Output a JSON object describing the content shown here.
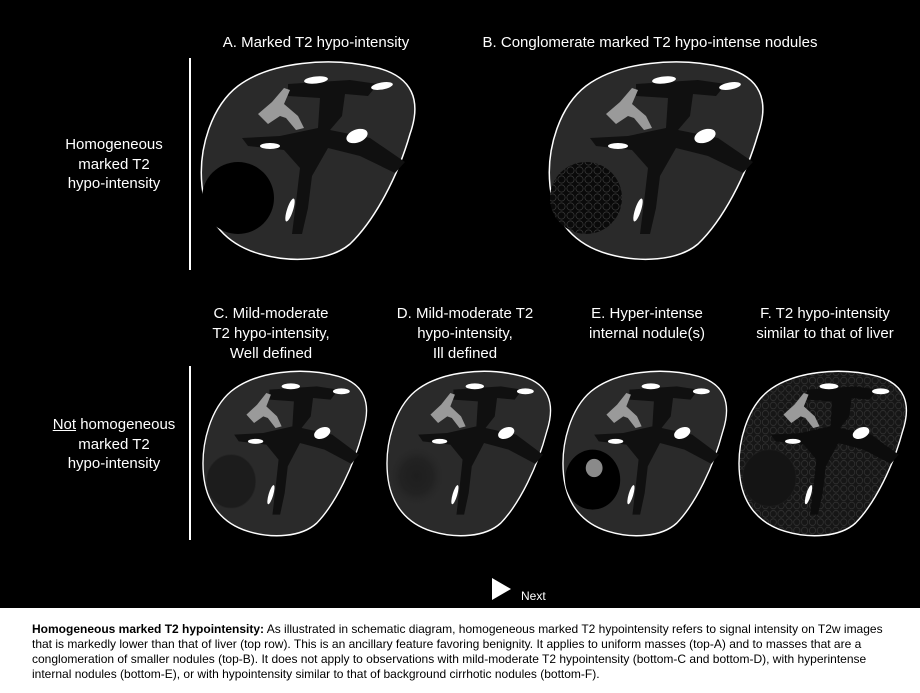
{
  "panels": {
    "a": {
      "title": "A. Marked T2 hypo-intensity"
    },
    "b": {
      "title": "B. Conglomerate marked T2 hypo-intense nodules"
    },
    "c": {
      "title_lines": [
        "C. Mild-moderate",
        "T2 hypo-intensity,",
        "Well defined"
      ]
    },
    "d": {
      "title_lines": [
        "D. Mild-moderate T2",
        "hypo-intensity,",
        "Ill defined"
      ]
    },
    "e": {
      "title_lines": [
        "E. Hyper-intense",
        "internal nodule(s)"
      ]
    },
    "f": {
      "title_lines": [
        "F. T2 hypo-intensity",
        "similar to that of liver"
      ]
    }
  },
  "row_labels": {
    "top": [
      "Homogeneous",
      "marked T2",
      "hypo-intensity"
    ],
    "bottom_underlined": "Not",
    "bottom_rest": " homogeneous",
    "bottom": [
      "marked T2",
      "hypo-intensity"
    ]
  },
  "navigation": {
    "next_label": "Next"
  },
  "caption": {
    "heading": "Homogeneous marked T2 hypointensity:",
    "body": " As illustrated in schematic diagram, homogeneous marked T2 hypointensity refers to signal intensity on T2w images that is markedly lower than that of liver (top row). This is an ancillary feature favoring benignity. It applies to uniform masses (top-A) and to masses that are a conglomeration of smaller nodules (top-B). It does not apply to observations with mild-moderate T2 hypointensity (bottom-C and bottom-D), with hyperintense internal nodules (bottom-E), or with hypointensity similar to that of background cirrhotic nodules (bottom-F)."
  },
  "colors": {
    "liver": "#2a2a2a",
    "vessels": "#101010",
    "portal_vein": "#9a9a9a",
    "bright_structures": "#ffffff",
    "outline": "#ffffff"
  }
}
